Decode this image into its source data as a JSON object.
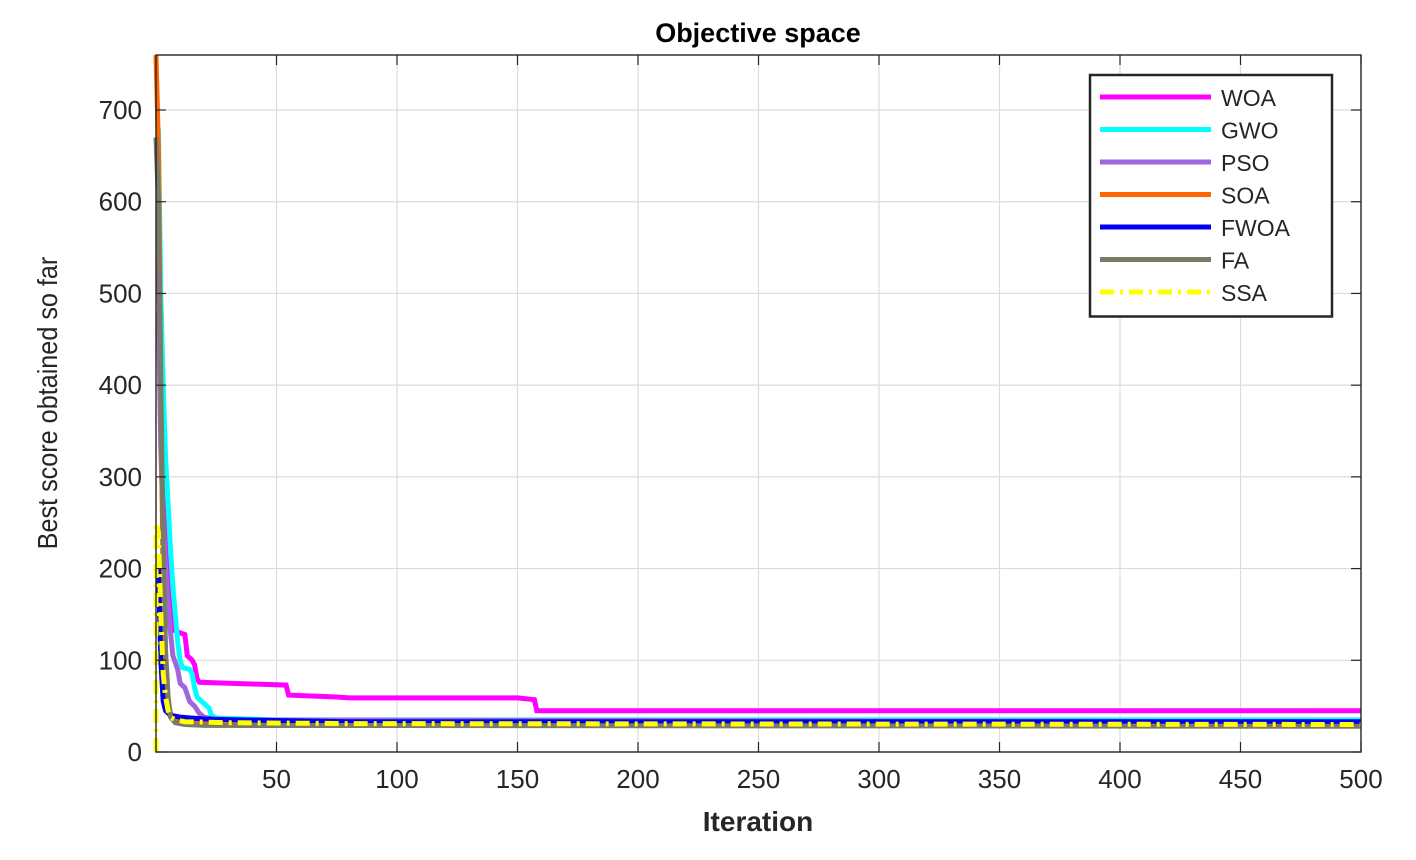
{
  "chart_data": {
    "type": "line",
    "title": "Objective space",
    "xlabel": "Iteration",
    "ylabel": "Best score obtained so far",
    "xlim": [
      0,
      500
    ],
    "ylim": [
      0,
      760
    ],
    "xticks": [
      50,
      100,
      150,
      200,
      250,
      300,
      350,
      400,
      450,
      500
    ],
    "yticks": [
      0,
      100,
      200,
      300,
      400,
      500,
      600,
      700
    ],
    "grid": true,
    "legend_position": "top-right",
    "series": [
      {
        "name": "WOA",
        "color": "#ff00ff",
        "style": "solid",
        "points": [
          [
            1,
            540
          ],
          [
            2,
            400
          ],
          [
            3,
            300
          ],
          [
            4,
            230
          ],
          [
            5,
            180
          ],
          [
            6,
            150
          ],
          [
            7,
            133
          ],
          [
            10,
            130
          ],
          [
            12,
            128
          ],
          [
            13,
            105
          ],
          [
            15,
            100
          ],
          [
            16,
            95
          ],
          [
            17,
            80
          ],
          [
            18,
            76
          ],
          [
            30,
            75
          ],
          [
            54,
            73
          ],
          [
            55,
            62
          ],
          [
            75,
            60
          ],
          [
            80,
            59
          ],
          [
            150,
            59
          ],
          [
            157,
            57
          ],
          [
            158,
            45
          ],
          [
            500,
            45
          ]
        ]
      },
      {
        "name": "GWO",
        "color": "#00ffff",
        "style": "solid",
        "points": [
          [
            1,
            680
          ],
          [
            2,
            500
          ],
          [
            3,
            400
          ],
          [
            4,
            320
          ],
          [
            5,
            270
          ],
          [
            6,
            220
          ],
          [
            7,
            180
          ],
          [
            8,
            150
          ],
          [
            9,
            120
          ],
          [
            10,
            100
          ],
          [
            11,
            92
          ],
          [
            14,
            90
          ],
          [
            15,
            85
          ],
          [
            16,
            70
          ],
          [
            17,
            60
          ],
          [
            19,
            55
          ],
          [
            22,
            48
          ],
          [
            23,
            40
          ],
          [
            25,
            37
          ],
          [
            50,
            35
          ],
          [
            500,
            35
          ]
        ]
      },
      {
        "name": "PSO",
        "color": "#a066dd",
        "style": "solid",
        "points": [
          [
            1,
            480
          ],
          [
            2,
            330
          ],
          [
            3,
            250
          ],
          [
            4,
            200
          ],
          [
            5,
            160
          ],
          [
            6,
            130
          ],
          [
            7,
            105
          ],
          [
            9,
            90
          ],
          [
            10,
            75
          ],
          [
            12,
            70
          ],
          [
            14,
            55
          ],
          [
            16,
            50
          ],
          [
            18,
            42
          ],
          [
            20,
            38
          ],
          [
            25,
            35
          ],
          [
            500,
            33
          ]
        ]
      },
      {
        "name": "SOA",
        "color": "#ff6600",
        "style": "solid",
        "points": [
          [
            0,
            760
          ],
          [
            1,
            660
          ],
          [
            2,
            400
          ],
          [
            3,
            180
          ],
          [
            4,
            90
          ],
          [
            5,
            55
          ],
          [
            6,
            42
          ],
          [
            7,
            36
          ],
          [
            10,
            33
          ],
          [
            20,
            32
          ],
          [
            50,
            31
          ],
          [
            200,
            30
          ],
          [
            500,
            29
          ]
        ]
      },
      {
        "name": "FWOA",
        "color": "#0000ee",
        "style": "solid",
        "points": [
          [
            1,
            200
          ],
          [
            2,
            100
          ],
          [
            3,
            55
          ],
          [
            4,
            45
          ],
          [
            6,
            40
          ],
          [
            10,
            38
          ],
          [
            15,
            37
          ],
          [
            20,
            36
          ],
          [
            35,
            35
          ],
          [
            55,
            34
          ],
          [
            80,
            33
          ],
          [
            500,
            33
          ]
        ]
      },
      {
        "name": "FA",
        "color": "#7a7a66",
        "style": "solid",
        "points": [
          [
            0,
            670
          ],
          [
            1,
            600
          ],
          [
            2,
            400
          ],
          [
            3,
            220
          ],
          [
            4,
            110
          ],
          [
            5,
            60
          ],
          [
            6,
            38
          ],
          [
            8,
            32
          ],
          [
            12,
            30
          ],
          [
            20,
            29
          ],
          [
            500,
            28
          ]
        ]
      },
      {
        "name": "SSA",
        "color": "#ffff00",
        "style": "dashdot",
        "points": [
          [
            0,
            0
          ],
          [
            0,
            250
          ],
          [
            1,
            240
          ],
          [
            2,
            150
          ],
          [
            3,
            85
          ],
          [
            4,
            60
          ],
          [
            5,
            45
          ],
          [
            6,
            38
          ],
          [
            8,
            35
          ],
          [
            12,
            33
          ],
          [
            30,
            32
          ],
          [
            80,
            31
          ],
          [
            500,
            30
          ]
        ]
      }
    ]
  }
}
